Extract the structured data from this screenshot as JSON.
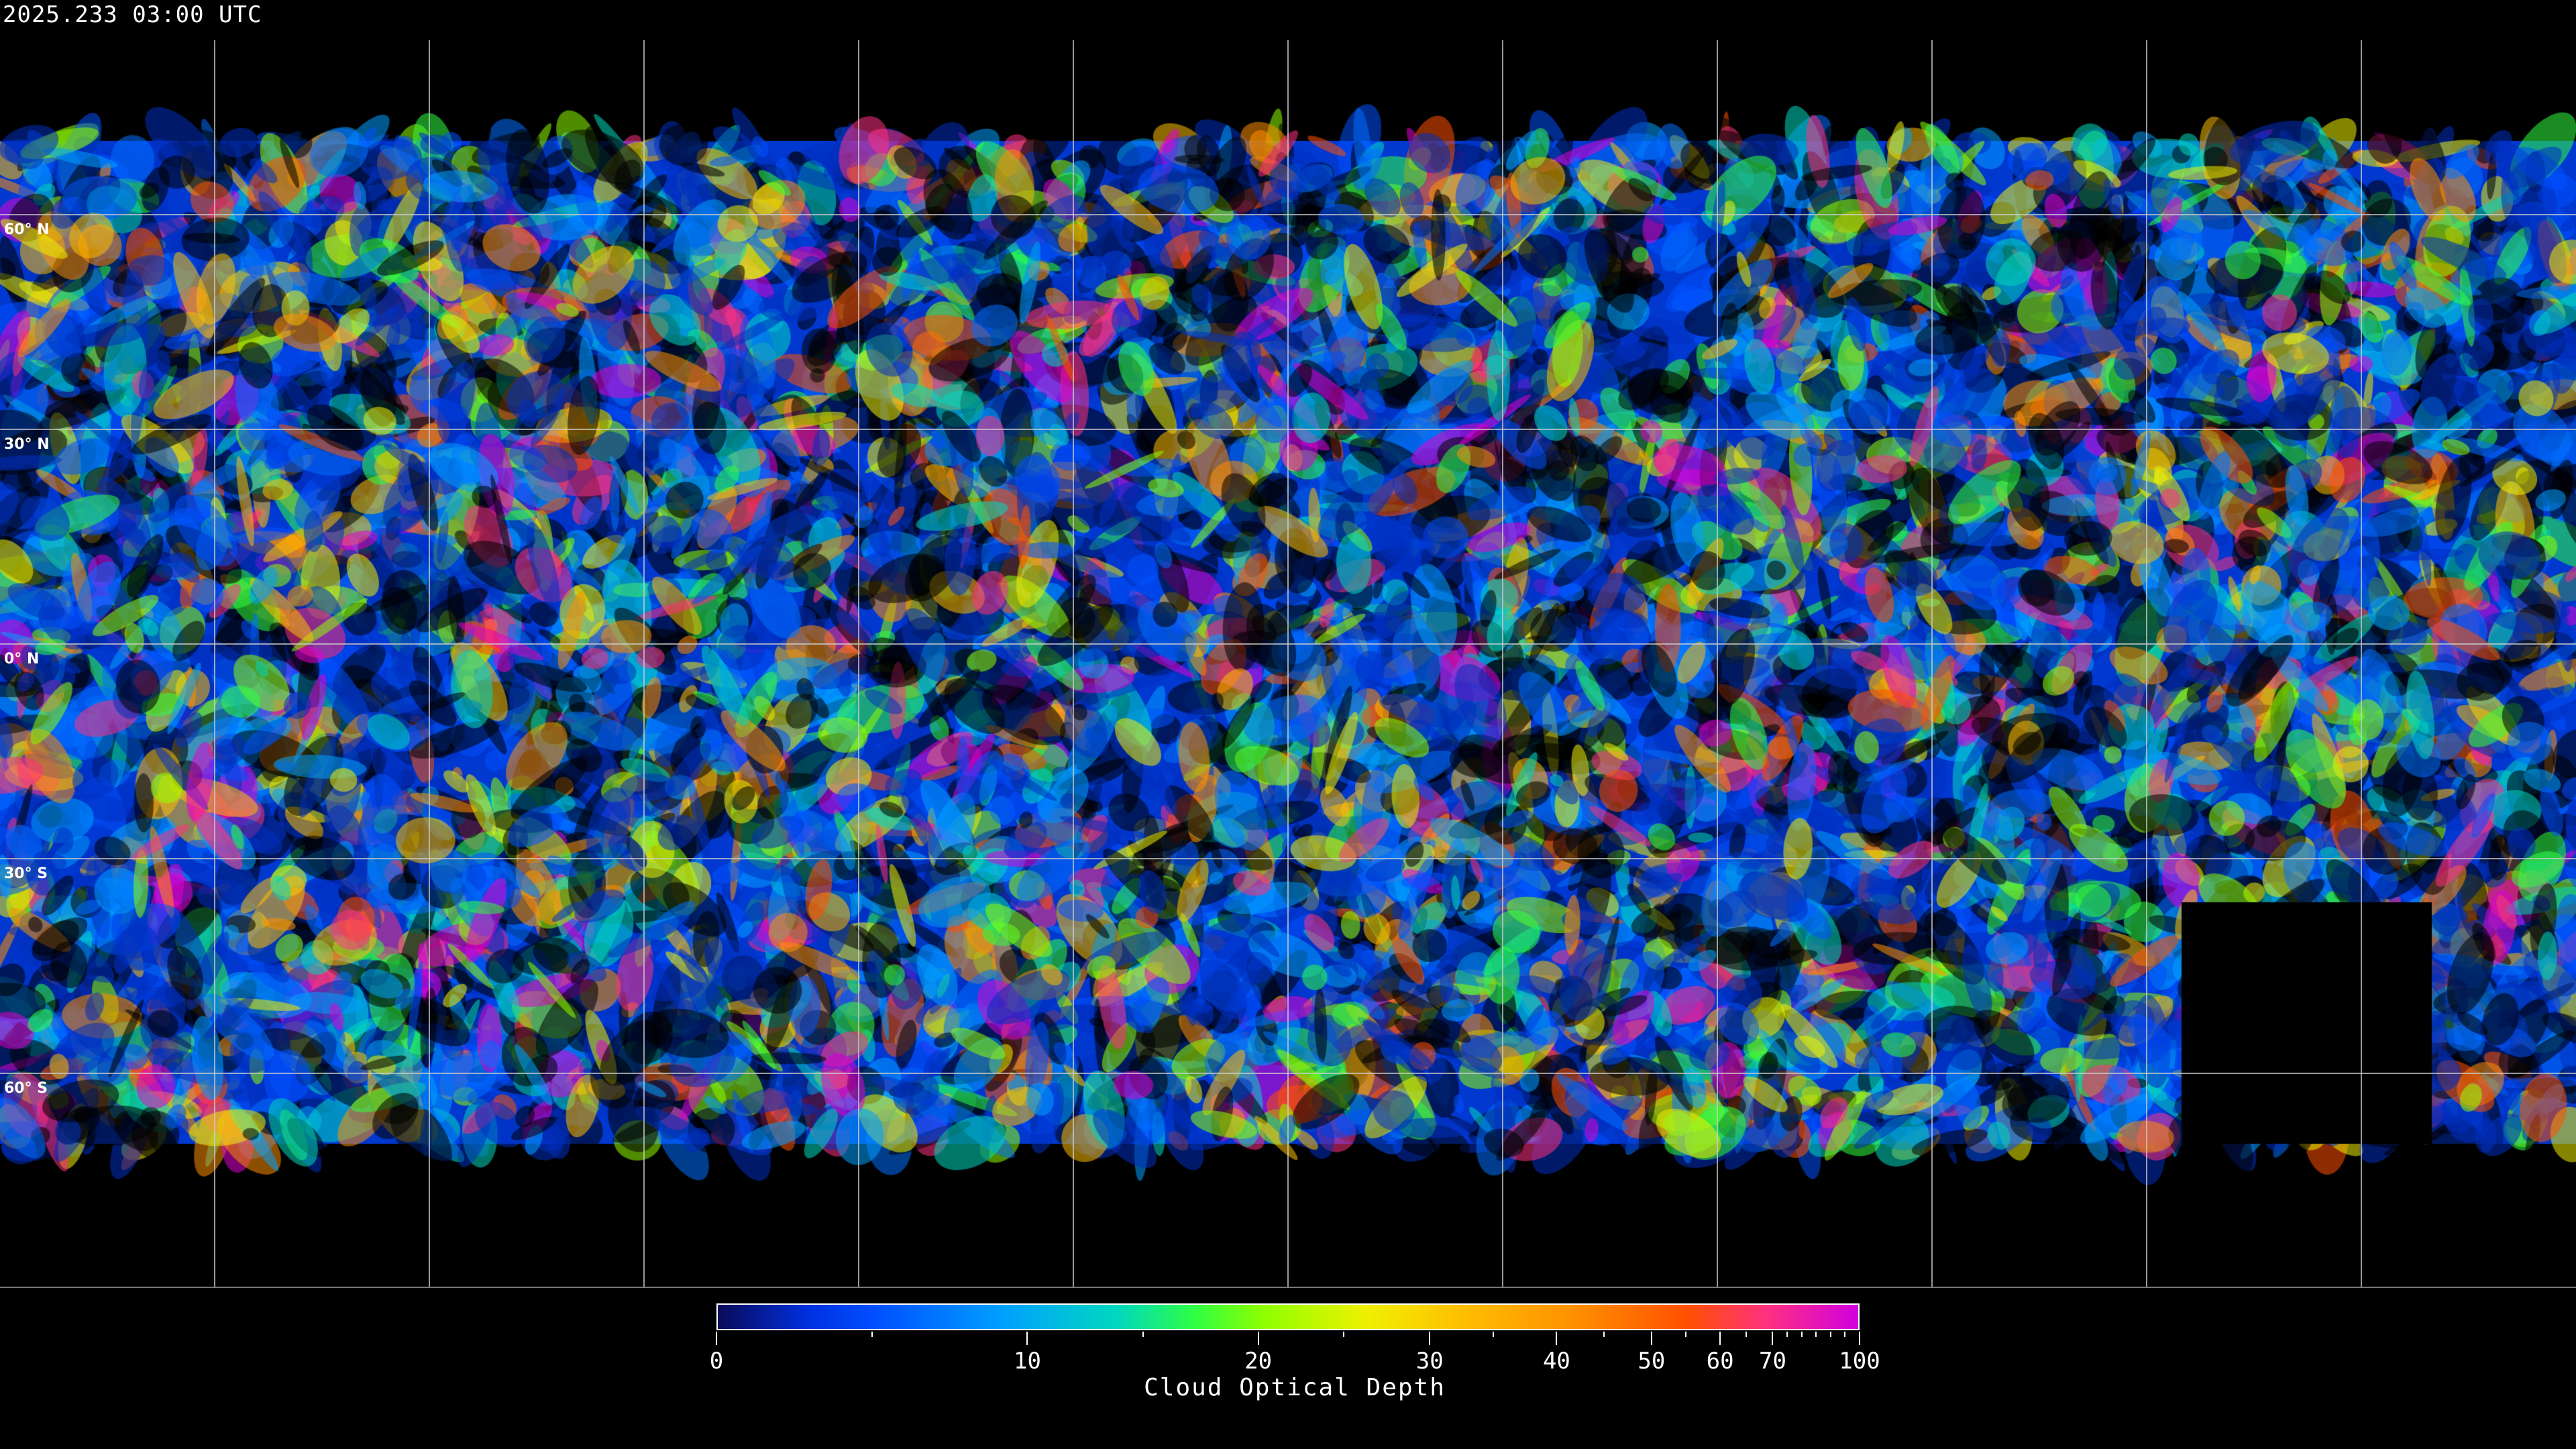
{
  "title": "2025.233 03:00 UTC",
  "map": {
    "projection": "equirectangular",
    "gridlines": {
      "longitude_step_deg": 30,
      "latitude_step_deg": 30
    },
    "lat_labels": [
      "60° N",
      "30° N",
      "0° N",
      "30° S",
      "60° S"
    ],
    "background_color": "#000000",
    "coastline_color": "#ffffff",
    "gridline_color": "#cccccc"
  },
  "colorbar": {
    "title": "Cloud Optical Depth",
    "range": [
      0,
      100
    ],
    "tick_labels": [
      "0",
      "10",
      "20",
      "30",
      "40",
      "50",
      "60",
      "70",
      "100"
    ],
    "colors": [
      "#0a0a5a",
      "#0050ff",
      "#00a0ff",
      "#30ff40",
      "#f0f000",
      "#ffc000",
      "#ff5000",
      "#d000e0"
    ]
  }
}
